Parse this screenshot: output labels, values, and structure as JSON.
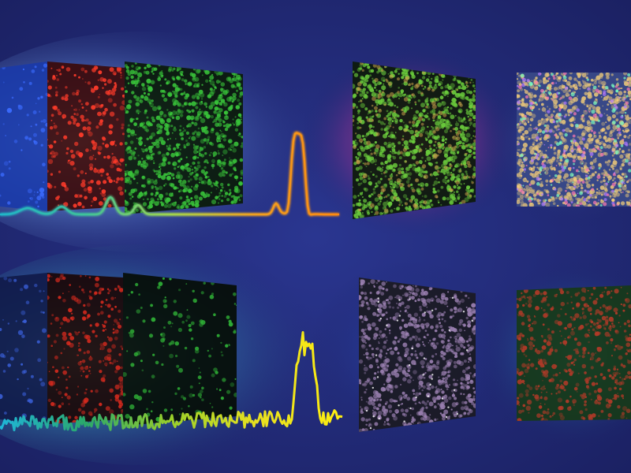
{
  "background": "#1b2163",
  "rows": [
    {
      "name": "top",
      "glow_color": "#7fb6ff",
      "secondary_glow": "#c23a7a",
      "panels": [
        {
          "name": "blue-channel-panel",
          "tint": "#1a3aa8",
          "dot": "#3b6bff",
          "density": 60
        },
        {
          "name": "red-channel-panel",
          "tint": "#3b0a0a",
          "dot": "#ff3b2a",
          "density": 260
        },
        {
          "name": "green-channel-panel",
          "tint": "#0a1a08",
          "dot": "#39c43a",
          "density": 900
        },
        {
          "name": "merged-panel",
          "tint": "#0d1a0a",
          "dot": "#6acb3c",
          "density": 1000
        },
        {
          "name": "composite-panel",
          "tint": "#3a4a88",
          "dot": "#e0c07a",
          "density": 900
        }
      ],
      "trace": {
        "style": "smooth",
        "colors": [
          "#1fb6c9",
          "#3ec29a",
          "#9ed34e",
          "#f0a020",
          "#ff8a10"
        ]
      }
    },
    {
      "name": "bottom",
      "glow_color": "#5fe0e0",
      "secondary_glow": "#2b6fd0",
      "panels": [
        {
          "name": "blue-channel-panel",
          "tint": "#101a4a",
          "dot": "#3a5fd8",
          "density": 50
        },
        {
          "name": "red-channel-panel",
          "tint": "#1a0606",
          "dot": "#d42a1e",
          "density": 240
        },
        {
          "name": "green-channel-panel",
          "tint": "#050d05",
          "dot": "#2fb036",
          "density": 150
        },
        {
          "name": "merged-panel",
          "tint": "#1b1a22",
          "dot": "#9a7fb0",
          "density": 800
        },
        {
          "name": "composite-panel",
          "tint": "#173a18",
          "dot": "#b03a28",
          "density": 500
        }
      ],
      "trace": {
        "style": "noisy",
        "colors": [
          "#1fb6d9",
          "#2aa86a",
          "#9bd02a",
          "#e8e020",
          "#ffee10"
        ]
      }
    }
  ]
}
